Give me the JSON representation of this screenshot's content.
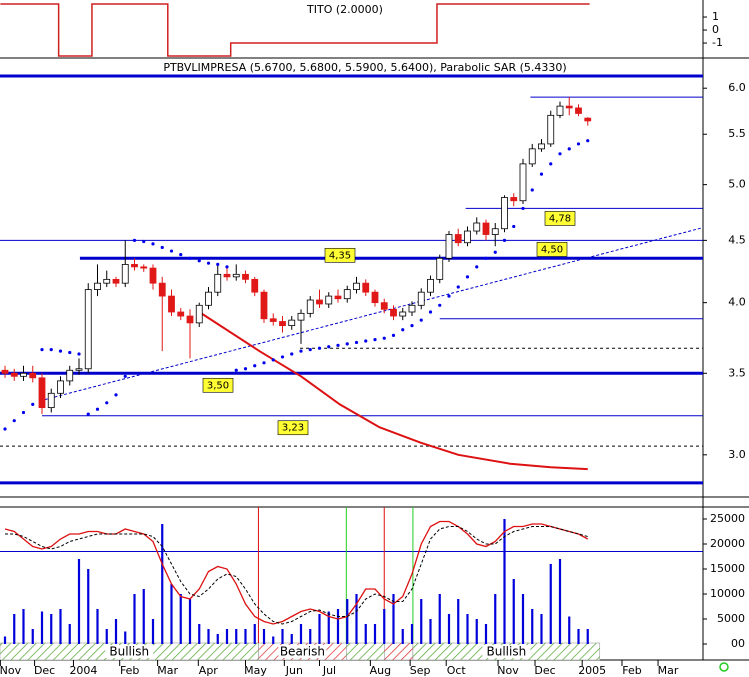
{
  "chart_data": [
    {
      "type": "step",
      "title": "TITO (2.0000)",
      "color": "#d02020",
      "x": [
        -0.5,
        3.5,
        5.8,
        8.6,
        9.4,
        16.5,
        17.6,
        23.5,
        24.4,
        45.4,
        46.7,
        63.2
      ],
      "values": [
        2,
        2,
        -2,
        -2,
        2,
        2,
        -2,
        -2,
        -1,
        -1,
        2,
        2
      ],
      "ylim": [
        -2.15,
        2.31
      ],
      "yticks": [
        1,
        0,
        -1
      ]
    },
    {
      "type": "candlestick",
      "title": "PTBVLIMPRESA (5.6700, 5.6800, 5.5900, 5.6400), Parabolic SAR (5.4330)",
      "log_scale": true,
      "up_color": "#ffffff",
      "down_color": "#e01818",
      "x": [
        0,
        1,
        2,
        3,
        4,
        5,
        6,
        7,
        8,
        9,
        10,
        11,
        12,
        13,
        14,
        15,
        16,
        17,
        18,
        19,
        20,
        21,
        22,
        23,
        24,
        25,
        26,
        27,
        28,
        29,
        30,
        31,
        32,
        33,
        34,
        35,
        36,
        37,
        38,
        39,
        40,
        41,
        42,
        43,
        44,
        45,
        46,
        47,
        48,
        49,
        50,
        51,
        52,
        53,
        54,
        55,
        56,
        57,
        58,
        59,
        60,
        61,
        62,
        63
      ],
      "open": [
        3.52,
        3.5,
        3.48,
        3.5,
        3.47,
        3.28,
        3.37,
        3.45,
        3.52,
        3.53,
        4.1,
        4.15,
        4.18,
        4.15,
        4.3,
        4.28,
        4.27,
        4.15,
        4.05,
        3.93,
        3.9,
        3.85,
        3.98,
        4.08,
        4.22,
        4.2,
        4.22,
        4.18,
        4.08,
        3.88,
        3.86,
        3.83,
        3.87,
        3.92,
        4.02,
        3.99,
        4.05,
        4.03,
        4.1,
        4.15,
        4.08,
        4.0,
        3.95,
        3.9,
        3.93,
        3.98,
        4.08,
        4.18,
        4.35,
        4.55,
        4.48,
        4.58,
        4.65,
        4.55,
        4.6,
        4.88,
        4.85,
        5.2,
        5.35,
        5.4,
        5.7,
        5.8,
        5.78,
        5.67
      ],
      "high": [
        3.55,
        3.53,
        3.55,
        3.55,
        3.5,
        3.4,
        3.48,
        3.55,
        3.6,
        4.15,
        4.3,
        4.25,
        4.2,
        4.5,
        4.35,
        4.3,
        4.3,
        4.2,
        4.1,
        3.96,
        3.95,
        4.0,
        4.12,
        4.3,
        4.28,
        4.3,
        4.25,
        4.2,
        4.1,
        3.92,
        3.9,
        3.9,
        3.95,
        4.05,
        4.1,
        4.08,
        4.1,
        4.13,
        4.2,
        4.18,
        4.1,
        4.03,
        3.98,
        3.96,
        4.01,
        4.11,
        4.21,
        4.38,
        4.58,
        4.6,
        4.62,
        4.7,
        4.68,
        4.65,
        4.9,
        4.92,
        5.25,
        5.4,
        5.45,
        5.75,
        5.85,
        5.9,
        5.82,
        5.68
      ],
      "low": [
        3.47,
        3.45,
        3.45,
        3.44,
        3.24,
        3.25,
        3.34,
        3.42,
        3.49,
        3.5,
        4.05,
        4.12,
        4.12,
        4.12,
        4.25,
        4.24,
        4.1,
        3.65,
        3.9,
        3.87,
        3.6,
        3.82,
        3.95,
        4.05,
        4.17,
        4.17,
        4.15,
        4.05,
        3.85,
        3.83,
        3.78,
        3.8,
        3.7,
        3.89,
        3.96,
        3.96,
        4.0,
        4.0,
        4.07,
        4.05,
        3.97,
        3.92,
        3.87,
        3.87,
        3.9,
        3.95,
        4.05,
        4.15,
        4.32,
        4.45,
        4.45,
        4.55,
        4.5,
        4.45,
        4.57,
        4.8,
        4.82,
        5.17,
        5.32,
        5.37,
        5.67,
        5.7,
        5.69,
        5.59
      ],
      "close": [
        3.5,
        3.48,
        3.5,
        3.47,
        3.28,
        3.37,
        3.45,
        3.52,
        3.53,
        4.1,
        4.15,
        4.18,
        4.15,
        4.3,
        4.28,
        4.27,
        4.15,
        4.05,
        3.93,
        3.9,
        3.85,
        3.98,
        4.08,
        4.22,
        4.2,
        4.22,
        4.18,
        4.08,
        3.88,
        3.86,
        3.83,
        3.87,
        3.92,
        4.02,
        3.99,
        4.05,
        4.03,
        4.1,
        4.15,
        4.08,
        4.0,
        3.95,
        3.9,
        3.93,
        3.98,
        4.08,
        4.18,
        4.35,
        4.55,
        4.48,
        4.58,
        4.65,
        4.55,
        4.6,
        4.88,
        4.85,
        5.2,
        5.35,
        5.4,
        5.7,
        5.8,
        5.78,
        5.72,
        5.64
      ],
      "sar": {
        "color": "#0000ee",
        "values": [
          3.15,
          3.2,
          3.25,
          3.3,
          3.66,
          3.66,
          3.65,
          3.64,
          3.63,
          3.24,
          3.27,
          3.31,
          3.36,
          3.48,
          4.5,
          4.49,
          4.47,
          4.44,
          4.41,
          4.38,
          4.35,
          4.33,
          4.31,
          4.3,
          4.28,
          3.52,
          3.53,
          3.55,
          3.57,
          3.59,
          3.61,
          3.63,
          3.65,
          3.66,
          3.67,
          3.68,
          3.69,
          3.7,
          3.71,
          3.72,
          3.73,
          3.74,
          3.76,
          3.8,
          3.83,
          3.87,
          3.93,
          3.98,
          4.05,
          4.12,
          4.2,
          4.28,
          4.35,
          4.4,
          4.5,
          4.62,
          4.78,
          4.95,
          5.1,
          5.2,
          5.3,
          5.35,
          5.4,
          5.433
        ]
      },
      "levels": [
        {
          "value": 6.14,
          "start": -0.54,
          "style": "thick",
          "color": "#0000cc"
        },
        {
          "value": 5.9,
          "start": 56.8,
          "style": "thin",
          "color": "#0000cc"
        },
        {
          "value": 4.78,
          "start": 49.8,
          "style": "thin",
          "color": "#0000cc",
          "label": "4,78"
        },
        {
          "value": 4.5,
          "start": -0.54,
          "style": "thin",
          "color": "#0000cc",
          "label": "4,50"
        },
        {
          "value": 4.35,
          "start": 8.1,
          "style": "thick",
          "color": "#0000cc",
          "label": "4,35"
        },
        {
          "value": 3.88,
          "start": 47,
          "style": "thin",
          "color": "#0000cc"
        },
        {
          "value": 3.67,
          "start": 31.9,
          "style": "dashed",
          "color": "#000000"
        },
        {
          "value": 3.5,
          "start": -0.54,
          "style": "thick",
          "color": "#0000cc",
          "label": "3,50"
        },
        {
          "value": 3.23,
          "start": 4,
          "style": "thin",
          "color": "#0000cc",
          "label": "3,23"
        },
        {
          "value": 3.05,
          "start": -0.54,
          "style": "dashed",
          "color": "#000000"
        },
        {
          "value": 2.845,
          "start": -0.54,
          "style": "thick",
          "color": "#0000cc"
        }
      ],
      "ma": {
        "color": "#dd1111",
        "x": [
          21,
          27.5,
          32,
          36.2,
          40.5,
          44.9,
          49,
          54.6,
          59,
          63
        ],
        "values": [
          3.93,
          3.65,
          3.48,
          3.3,
          3.16,
          3.07,
          3.0,
          2.95,
          2.93,
          2.92
        ]
      },
      "trend": {
        "color": "#0000cc",
        "x": [
          4.3,
          75.46
        ],
        "values": [
          3.33,
          4.61
        ]
      },
      "ylim": [
        2.77,
        6.14
      ],
      "yticks": [
        {
          "value": 6,
          "label": "6.0"
        },
        {
          "value": 5.5,
          "label": "5.5"
        },
        {
          "value": 5,
          "label": "5.0"
        },
        {
          "value": 4.5,
          "label": "4.5"
        },
        {
          "value": 4,
          "label": "4.0"
        },
        {
          "value": 3.5,
          "label": "3.5"
        },
        {
          "value": 3,
          "label": "3.0"
        }
      ]
    },
    {
      "type": "volume",
      "color": "#0000dd",
      "x": [
        0,
        1,
        2,
        3,
        4,
        5,
        6,
        7,
        8,
        9,
        10,
        11,
        12,
        13,
        14,
        15,
        16,
        17,
        18,
        19,
        20,
        21,
        22,
        23,
        24,
        25,
        26,
        27,
        28,
        29,
        30,
        31,
        32,
        33,
        34,
        35,
        36,
        37,
        38,
        39,
        40,
        41,
        42,
        43,
        44,
        45,
        46,
        47,
        48,
        49,
        50,
        51,
        52,
        53,
        54,
        55,
        56,
        57,
        58,
        59,
        60,
        61,
        62,
        63
      ],
      "values": [
        1500,
        6000,
        7000,
        3000,
        6500,
        6000,
        7000,
        4000,
        17000,
        15000,
        7000,
        3000,
        5000,
        2500,
        10000,
        11000,
        5000,
        24000,
        12000,
        10000,
        9000,
        4000,
        3000,
        2000,
        3000,
        3000,
        3000,
        4000,
        3000,
        1500,
        3000,
        2000,
        4000,
        3000,
        6000,
        6500,
        7000,
        9000,
        10000,
        4000,
        4000,
        7000,
        10000,
        3000,
        4000,
        9000,
        5000,
        10000,
        6000,
        9000,
        6000,
        5000,
        4000,
        10000,
        25000,
        13000,
        10000,
        7000,
        6000,
        16000,
        17000,
        5500,
        3000,
        3000
      ],
      "oscillator": [
        {
          "color": "#dd1111",
          "dashed": false,
          "values": [
            23000,
            22500,
            21000,
            19500,
            19000,
            19500,
            21000,
            22000,
            22000,
            22500,
            22500,
            22000,
            22000,
            23000,
            22500,
            22000,
            20500,
            16000,
            12000,
            9500,
            9000,
            11000,
            14500,
            15500,
            15000,
            12000,
            8000,
            5500,
            4500,
            4000,
            4500,
            5500,
            6500,
            7000,
            6500,
            5500,
            5000,
            5500,
            8000,
            11000,
            11000,
            9000,
            8000,
            9500,
            14000,
            20000,
            23500,
            24500,
            24500,
            23500,
            22000,
            20000,
            19500,
            20500,
            22500,
            23500,
            23500,
            24000,
            24000,
            23500,
            23000,
            22500,
            22000,
            21000
          ]
        },
        {
          "color": "#000000",
          "dashed": true,
          "values": [
            22000,
            22000,
            21500,
            20500,
            19500,
            19000,
            19500,
            20500,
            21000,
            21500,
            22000,
            22000,
            22000,
            22000,
            22000,
            22000,
            21500,
            19500,
            16000,
            12500,
            10000,
            9500,
            11000,
            13000,
            14000,
            13500,
            11000,
            8000,
            6000,
            4500,
            4000,
            4500,
            5500,
            6500,
            6800,
            6000,
            5500,
            5500,
            6500,
            9000,
            10000,
            9500,
            8500,
            8500,
            11000,
            16000,
            21000,
            23000,
            23500,
            23500,
            22500,
            21000,
            20000,
            20000,
            21500,
            22500,
            23000,
            23500,
            23500,
            23500,
            23000,
            22500,
            22000,
            21500
          ]
        }
      ],
      "threshold": {
        "value": 18500,
        "color": "#0000cc"
      },
      "signals": [
        {
          "x": 27.4,
          "color": "#dd1111"
        },
        {
          "x": 36.9,
          "color": "#22cc22"
        },
        {
          "x": 41,
          "color": "#dd1111"
        },
        {
          "x": 44.1,
          "color": "#22cc22"
        }
      ],
      "ylim": [
        0,
        27400
      ],
      "yticks": [
        25000,
        20000,
        15000,
        10000,
        5000,
        {
          "value": 0,
          "label": "00"
        }
      ]
    }
  ],
  "zones": [
    {
      "start": -0.54,
      "end": 27.4,
      "trend": "bull",
      "label": "Bullish"
    },
    {
      "start": 27.4,
      "end": 36.9,
      "trend": "bear",
      "label": "Bearish"
    },
    {
      "start": 36.9,
      "end": 41,
      "trend": "bull"
    },
    {
      "start": 41,
      "end": 44.1,
      "trend": "bear"
    },
    {
      "start": 44.1,
      "end": 64.3,
      "trend": "bull",
      "label": "Bullish"
    }
  ],
  "xlim": [
    -0.54,
    75.46
  ],
  "xticks": [
    {
      "value": -0.5,
      "label": "Nov"
    },
    {
      "value": 3.2,
      "label": "Dec"
    },
    {
      "value": 7.4,
      "label": "2004"
    },
    {
      "value": 12.4,
      "label": "Feb"
    },
    {
      "value": 16.5,
      "label": "Mar"
    },
    {
      "value": 20.9,
      "label": "Apr"
    },
    {
      "value": 26,
      "label": "May"
    },
    {
      "value": 30.2,
      "label": "Jun"
    },
    {
      "value": 34,
      "label": "Jul"
    },
    {
      "value": 39.5,
      "label": "Aug"
    },
    {
      "value": 43.8,
      "label": "Sep"
    },
    {
      "value": 47.7,
      "label": "Oct"
    },
    {
      "value": 53.3,
      "label": "Nov"
    },
    {
      "value": 57.3,
      "label": "Dec"
    },
    {
      "value": 62.4,
      "label": "2005"
    },
    {
      "value": 66.7,
      "label": "Feb"
    },
    {
      "value": 70.6,
      "label": "Mar"
    }
  ]
}
